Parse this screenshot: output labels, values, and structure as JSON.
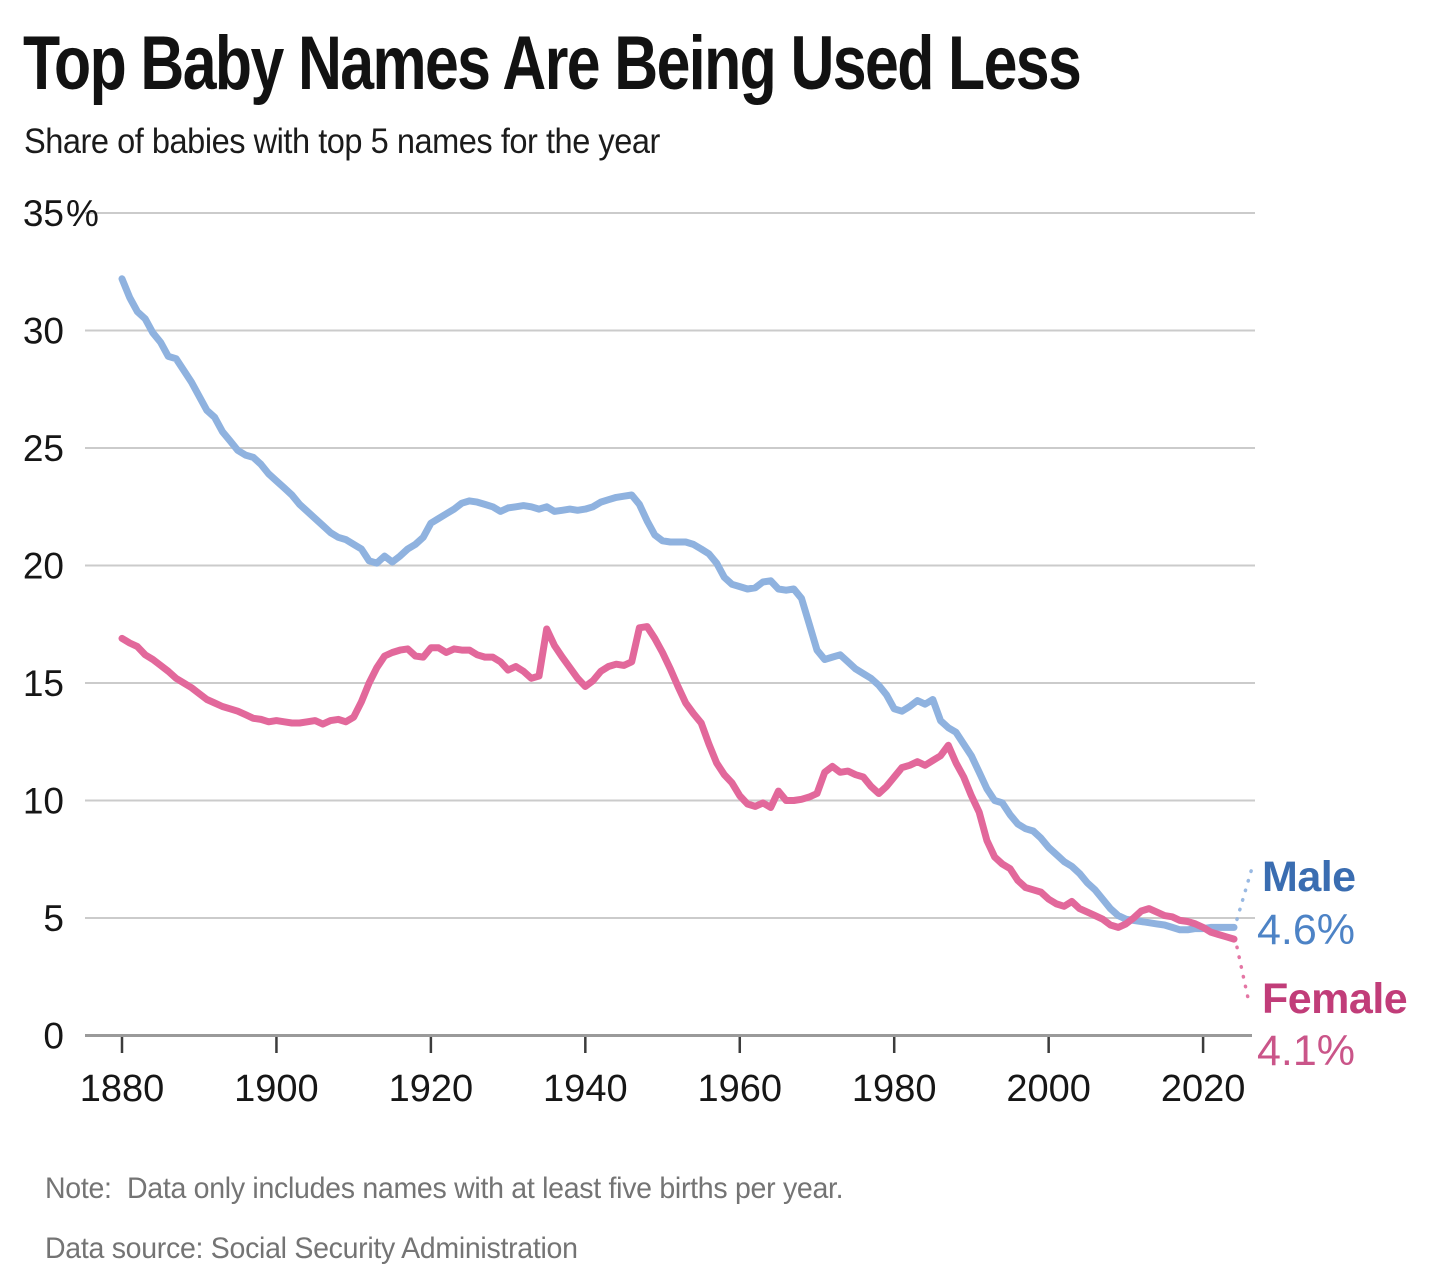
{
  "chart_data": {
    "type": "line",
    "title": "Top Baby Names Are Being Used Less",
    "subtitle": "Share of babies with top 5 names for the year",
    "note": "Note:  Data only includes names with at least five births per year.",
    "source": "Data source: Social Security Administration",
    "x_start": 1880,
    "x_end": 2024,
    "x_ticks": [
      1880,
      1900,
      1920,
      1940,
      1960,
      1980,
      2000,
      2020
    ],
    "y_ticks": [
      0,
      5,
      10,
      15,
      20,
      25,
      30,
      35
    ],
    "y_suffix": "%",
    "y_suffix_tick": 35,
    "ylim": [
      0,
      35
    ],
    "grid": true,
    "legend_position": "right-end-labels",
    "grid_color": "#cbcbcb",
    "baseline_color": "#9a9a9a",
    "tick_color": "#3c3c3c",
    "axis_text_color": "#161616",
    "series": [
      {
        "name": "Male",
        "end_label": "Male",
        "end_value": "4.6%",
        "color": "#8FB2DF",
        "label_color": "#3A6DB1",
        "value_color": "#4D83C6",
        "values": [
          32.2,
          31.4,
          30.8,
          30.5,
          29.9,
          29.5,
          28.9,
          28.8,
          28.3,
          27.8,
          27.2,
          26.6,
          26.3,
          25.7,
          25.3,
          24.9,
          24.7,
          24.6,
          24.3,
          23.9,
          23.6,
          23.3,
          23.0,
          22.6,
          22.3,
          22.0,
          21.7,
          21.4,
          21.2,
          21.1,
          20.9,
          20.7,
          20.2,
          20.1,
          20.4,
          20.15,
          20.4,
          20.7,
          20.9,
          21.2,
          21.8,
          22.0,
          22.2,
          22.4,
          22.65,
          22.75,
          22.7,
          22.6,
          22.5,
          22.3,
          22.45,
          22.5,
          22.55,
          22.5,
          22.4,
          22.5,
          22.3,
          22.35,
          22.4,
          22.35,
          22.4,
          22.5,
          22.7,
          22.8,
          22.9,
          22.95,
          23.0,
          22.6,
          21.9,
          21.3,
          21.05,
          21.0,
          21.0,
          21.0,
          20.9,
          20.7,
          20.5,
          20.1,
          19.5,
          19.2,
          19.1,
          19.0,
          19.05,
          19.3,
          19.35,
          19.0,
          18.95,
          19.0,
          18.6,
          17.5,
          16.4,
          16.0,
          16.1,
          16.2,
          15.9,
          15.6,
          15.4,
          15.2,
          14.9,
          14.5,
          13.9,
          13.8,
          14.0,
          14.25,
          14.1,
          14.3,
          13.4,
          13.1,
          12.9,
          12.4,
          11.9,
          11.2,
          10.5,
          10.0,
          9.9,
          9.4,
          9.0,
          8.8,
          8.7,
          8.4,
          8.0,
          7.7,
          7.4,
          7.2,
          6.9,
          6.5,
          6.2,
          5.8,
          5.4,
          5.1,
          4.95,
          4.9,
          4.85,
          4.8,
          4.75,
          4.7,
          4.6,
          4.5,
          4.5,
          4.55,
          4.55,
          4.6,
          4.6,
          4.6,
          4.6
        ]
      },
      {
        "name": "Female",
        "end_label": "Female",
        "end_value": "4.1%",
        "color": "#E2689B",
        "label_color": "#C13D79",
        "value_color": "#CA5589",
        "values": [
          16.9,
          16.7,
          16.55,
          16.2,
          16.0,
          15.75,
          15.5,
          15.2,
          15.0,
          14.8,
          14.55,
          14.3,
          14.15,
          14.0,
          13.9,
          13.8,
          13.65,
          13.5,
          13.45,
          13.35,
          13.4,
          13.35,
          13.3,
          13.3,
          13.35,
          13.4,
          13.25,
          13.4,
          13.45,
          13.35,
          13.55,
          14.2,
          15.0,
          15.65,
          16.15,
          16.3,
          16.4,
          16.45,
          16.15,
          16.1,
          16.5,
          16.5,
          16.3,
          16.45,
          16.4,
          16.4,
          16.2,
          16.1,
          16.1,
          15.9,
          15.55,
          15.7,
          15.5,
          15.2,
          15.3,
          17.3,
          16.6,
          16.1,
          15.65,
          15.2,
          14.85,
          15.1,
          15.5,
          15.7,
          15.8,
          15.75,
          15.9,
          17.35,
          17.4,
          16.9,
          16.3,
          15.6,
          14.85,
          14.15,
          13.7,
          13.3,
          12.4,
          11.6,
          11.1,
          10.75,
          10.2,
          9.85,
          9.75,
          9.9,
          9.7,
          10.4,
          10.0,
          10.0,
          10.05,
          10.15,
          10.3,
          11.2,
          11.45,
          11.2,
          11.25,
          11.1,
          11.0,
          10.6,
          10.3,
          10.6,
          11.0,
          11.4,
          11.5,
          11.65,
          11.5,
          11.7,
          11.9,
          12.35,
          11.6,
          11.0,
          10.2,
          9.5,
          8.3,
          7.6,
          7.3,
          7.1,
          6.6,
          6.3,
          6.2,
          6.1,
          5.8,
          5.6,
          5.5,
          5.7,
          5.4,
          5.25,
          5.1,
          4.95,
          4.7,
          4.6,
          4.75,
          5.0,
          5.3,
          5.4,
          5.25,
          5.1,
          5.05,
          4.9,
          4.85,
          4.75,
          4.6,
          4.4,
          4.3,
          4.2,
          4.1
        ]
      }
    ]
  }
}
